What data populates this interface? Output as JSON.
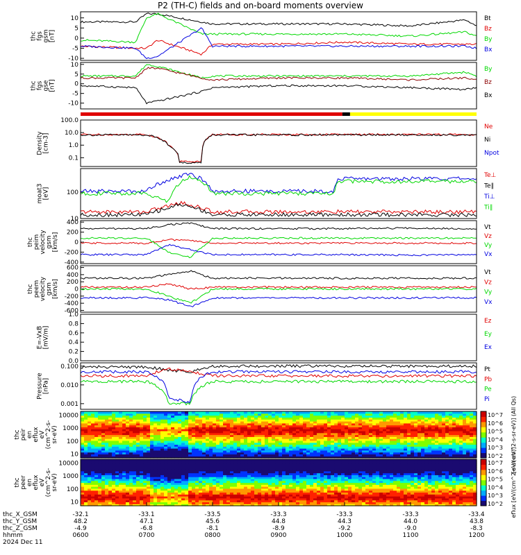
{
  "title": "P2 (TH-C) fields and on-board moments overview",
  "colors": {
    "black": "#000000",
    "red": "#e00000",
    "darkred": "#8b0000",
    "green": "#00d800",
    "blue": "#0000e0",
    "yellow": "#ffff00",
    "frame": "#000000"
  },
  "chart_data": [
    {
      "type": "line",
      "id": "fgs_gsm",
      "ylabel": [
        "thc",
        "fgs",
        "gsm",
        "[nT]"
      ],
      "yticks": [
        "10",
        "5",
        "0",
        "-5",
        "-10"
      ],
      "ylim": [
        -11,
        13
      ],
      "series": [
        {
          "name": "Bt",
          "color": "#000000",
          "x": [
            "0600",
            "0650",
            "0700",
            "0710",
            "0750",
            "0800",
            "0900",
            "1000",
            "1100",
            "1150",
            "1200"
          ],
          "values": [
            8,
            8,
            12,
            12,
            8,
            7,
            7,
            7,
            6,
            9,
            6
          ]
        },
        {
          "name": "Bz",
          "color": "#e00000",
          "x": [
            "0600",
            "0650",
            "0700",
            "0710",
            "0750",
            "0800",
            "0900",
            "1000",
            "1100",
            "1150",
            "1200"
          ],
          "values": [
            -4,
            -5,
            -5,
            -1,
            -8,
            -3,
            -3,
            -2,
            -3,
            -3,
            -3
          ]
        },
        {
          "name": "By",
          "color": "#00d800",
          "x": [
            "0600",
            "0650",
            "0700",
            "0710",
            "0750",
            "0800",
            "0900",
            "1000",
            "1100",
            "1150",
            "1200"
          ],
          "values": [
            -1,
            -2,
            10,
            12,
            2,
            2,
            2,
            2,
            1,
            3,
            1
          ]
        },
        {
          "name": "Bx",
          "color": "#0000e0",
          "x": [
            "0600",
            "0650",
            "0700",
            "0710",
            "0750",
            "0800",
            "0900",
            "1000",
            "1100",
            "1150",
            "1200"
          ],
          "values": [
            -4,
            -5,
            -10,
            -9,
            5,
            -4,
            -4,
            -4,
            -4,
            -4,
            -5
          ]
        }
      ]
    },
    {
      "type": "line",
      "id": "fgs_gse",
      "ylabel": [
        "thc",
        "fgs",
        "gse",
        "[nT]"
      ],
      "yticks": [
        "10",
        "5",
        "0",
        "-5",
        "-10"
      ],
      "ylim": [
        -13,
        11
      ],
      "series": [
        {
          "name": "By",
          "color": "#00d800",
          "x": [
            "0600",
            "0650",
            "0700",
            "0710",
            "0750",
            "0800",
            "0900",
            "1000",
            "1100",
            "1150",
            "1200"
          ],
          "values": [
            4,
            4,
            10,
            9,
            3,
            4,
            4,
            4,
            4,
            6,
            4
          ]
        },
        {
          "name": "Bz",
          "color": "#8b0000",
          "x": [
            "0600",
            "0650",
            "0700",
            "0710",
            "0750",
            "0800",
            "0900",
            "1000",
            "1100",
            "1150",
            "1200"
          ],
          "values": [
            3,
            3,
            8,
            8,
            3,
            2,
            3,
            3,
            2,
            3,
            2
          ]
        },
        {
          "name": "Bx",
          "color": "#000000",
          "x": [
            "0600",
            "0650",
            "0700",
            "0710",
            "0750",
            "0800",
            "0900",
            "1000",
            "1100",
            "1150",
            "1200"
          ],
          "values": [
            -1,
            -2,
            -10,
            -9,
            -4,
            -2,
            -1,
            -1,
            -2,
            -3,
            -2
          ]
        }
      ]
    },
    {
      "type": "line",
      "id": "density",
      "ylabel": [
        "Density",
        "[cm-3]"
      ],
      "yticks": [
        "100.0",
        "10.0",
        "1.0",
        "0.1"
      ],
      "ylim": [
        0.02,
        100
      ],
      "log": true,
      "series": [
        {
          "name": "Ne",
          "color": "#e00000",
          "x": [
            "0600",
            "0700",
            "0720",
            "0730",
            "0750",
            "0800",
            "0900",
            "1000",
            "1100",
            "1200"
          ],
          "values": [
            7,
            7,
            1,
            0.05,
            0.05,
            7,
            7,
            7,
            7,
            7
          ]
        },
        {
          "name": "Ni",
          "color": "#000000",
          "x": [
            "0600",
            "0700",
            "0720",
            "0730",
            "0750",
            "0800",
            "0900",
            "1000",
            "1100",
            "1200"
          ],
          "values": [
            6.5,
            6.5,
            1,
            0.04,
            0.04,
            6.5,
            6.5,
            6.5,
            6.5,
            6.5
          ]
        },
        {
          "name": "Npot",
          "color": "#0000e0",
          "x": [],
          "values": []
        }
      ]
    },
    {
      "type": "line",
      "id": "temperature",
      "ylabel": [
        "moat3",
        "[eV]"
      ],
      "yticks": [
        "100",
        "10"
      ],
      "ylim": [
        10,
        800
      ],
      "log": true,
      "series": [
        {
          "name": "Te⊥",
          "color": "#e00000",
          "x": [
            "0600",
            "0700",
            "0720",
            "0730",
            "0800",
            "0900",
            "1000",
            "1100",
            "1200"
          ],
          "values": [
            18,
            18,
            30,
            40,
            18,
            18,
            18,
            18,
            18
          ]
        },
        {
          "name": "Te∥",
          "color": "#000000",
          "x": [
            "0600",
            "0700",
            "0720",
            "0730",
            "0800",
            "0900",
            "1000",
            "1100",
            "1200"
          ],
          "values": [
            14,
            14,
            25,
            35,
            14,
            14,
            14,
            14,
            14
          ]
        },
        {
          "name": "Ti⊥",
          "color": "#0000e0",
          "x": [
            "0600",
            "0700",
            "0720",
            "0740",
            "0800",
            "0900",
            "0950",
            "0955",
            "1100",
            "1200"
          ],
          "values": [
            110,
            110,
            300,
            500,
            110,
            110,
            110,
            330,
            330,
            330
          ]
        },
        {
          "name": "Ti∥",
          "color": "#00d800",
          "x": [
            "0600",
            "0700",
            "0720",
            "0740",
            "0800",
            "0900",
            "0950",
            "0955",
            "1100",
            "1200"
          ],
          "values": [
            90,
            90,
            40,
            400,
            90,
            90,
            90,
            260,
            260,
            260
          ]
        }
      ]
    },
    {
      "type": "line",
      "id": "peim_velocity",
      "ylabel": [
        "thc",
        "peim",
        "velocity",
        "gsm",
        "[km/s]"
      ],
      "yticks": [
        "400",
        "200",
        "0",
        "-200",
        "-400"
      ],
      "ylim": [
        -430,
        430
      ],
      "series": [
        {
          "name": "Vt",
          "color": "#000000",
          "x": [
            "0600",
            "0700",
            "0720",
            "0740",
            "0800",
            "0900",
            "1000",
            "1100",
            "1200"
          ],
          "values": [
            270,
            270,
            350,
            380,
            270,
            270,
            270,
            280,
            270
          ]
        },
        {
          "name": "Vz",
          "color": "#e00000",
          "x": [
            "0600",
            "0700",
            "0720",
            "0740",
            "0800",
            "0900",
            "1000",
            "1100",
            "1200"
          ],
          "values": [
            -20,
            -20,
            50,
            30,
            -20,
            -20,
            -20,
            -20,
            -20
          ]
        },
        {
          "name": "Vy",
          "color": "#00d800",
          "x": [
            "0600",
            "0700",
            "0720",
            "0740",
            "0800",
            "0900",
            "1000",
            "1100",
            "1200"
          ],
          "values": [
            80,
            80,
            -200,
            -300,
            80,
            80,
            80,
            80,
            80
          ]
        },
        {
          "name": "Vx",
          "color": "#0000e0",
          "x": [
            "0600",
            "0700",
            "0720",
            "0740",
            "0800",
            "0900",
            "1000",
            "1100",
            "1200"
          ],
          "values": [
            -250,
            -250,
            -50,
            -150,
            -250,
            -250,
            -250,
            -260,
            -250
          ]
        }
      ]
    },
    {
      "type": "line",
      "id": "peem_velocity",
      "ylabel": [
        "thc",
        "peem",
        "velocity",
        "gsm",
        "[km/s]"
      ],
      "yticks": [
        "600",
        "400",
        "200",
        "0",
        "-200",
        "-400",
        "-600"
      ],
      "ylim": [
        -650,
        650
      ],
      "series": [
        {
          "name": "Vt",
          "color": "#000000",
          "x": [
            "0600",
            "0700",
            "0720",
            "0740",
            "0800",
            "0900",
            "1000",
            "1100",
            "1200"
          ],
          "values": [
            300,
            300,
            400,
            500,
            300,
            300,
            300,
            300,
            300
          ]
        },
        {
          "name": "Vz",
          "color": "#e00000",
          "x": [
            "0600",
            "0700",
            "0720",
            "0740",
            "0800",
            "0900",
            "1000",
            "1100",
            "1200"
          ],
          "values": [
            50,
            50,
            150,
            0,
            50,
            50,
            50,
            50,
            50
          ]
        },
        {
          "name": "Vy",
          "color": "#00d800",
          "x": [
            "0600",
            "0700",
            "0720",
            "0740",
            "0800",
            "0900",
            "1000",
            "1100",
            "1200"
          ],
          "values": [
            0,
            0,
            -200,
            -400,
            0,
            0,
            0,
            0,
            0
          ]
        },
        {
          "name": "Vx",
          "color": "#0000e0",
          "x": [
            "0600",
            "0700",
            "0720",
            "0740",
            "0800",
            "0900",
            "1000",
            "1100",
            "1200"
          ],
          "values": [
            -250,
            -250,
            -300,
            -500,
            -250,
            -250,
            -250,
            -250,
            -250
          ]
        }
      ]
    },
    {
      "type": "line",
      "id": "e_field",
      "ylabel": [
        "E=-VxB",
        "[mV/m]"
      ],
      "yticks": [
        "1.0",
        "0.8",
        "0.6",
        "0.4",
        "0.2",
        "0.0"
      ],
      "ylim": [
        0,
        1
      ],
      "series": [
        {
          "name": "Ez",
          "color": "#e00000",
          "x": [],
          "values": []
        },
        {
          "name": "Ey",
          "color": "#00d800",
          "x": [],
          "values": []
        },
        {
          "name": "Ex",
          "color": "#0000e0",
          "x": [],
          "values": []
        }
      ]
    },
    {
      "type": "line",
      "id": "pressure",
      "ylabel": [
        "Pressure",
        "[nPa]"
      ],
      "yticks": [
        "0.100",
        "0.010",
        "0.001"
      ],
      "ylim": [
        0.0005,
        0.15
      ],
      "log": true,
      "series": [
        {
          "name": "Pt",
          "color": "#000000",
          "x": [
            "0600",
            "0700",
            "0720",
            "0740",
            "0800",
            "0900",
            "1000",
            "1100",
            "1200"
          ],
          "values": [
            0.09,
            0.09,
            0.06,
            0.05,
            0.1,
            0.1,
            0.1,
            0.1,
            0.1
          ]
        },
        {
          "name": "Pb",
          "color": "#e00000",
          "x": [
            "0600",
            "0700",
            "0720",
            "0740",
            "0800",
            "0900",
            "1000",
            "1100",
            "1200"
          ],
          "values": [
            0.03,
            0.03,
            0.07,
            0.05,
            0.03,
            0.03,
            0.03,
            0.03,
            0.03
          ]
        },
        {
          "name": "Pe",
          "color": "#00d800",
          "x": [
            "0600",
            "0700",
            "0720",
            "0740",
            "0800",
            "0900",
            "1000",
            "1100",
            "1200"
          ],
          "values": [
            0.015,
            0.015,
            0.001,
            0.001,
            0.015,
            0.015,
            0.015,
            0.015,
            0.015
          ]
        },
        {
          "name": "Pi",
          "color": "#0000e0",
          "x": [
            "0600",
            "0700",
            "0720",
            "0740",
            "0800",
            "0900",
            "1000",
            "1100",
            "1200"
          ],
          "values": [
            0.05,
            0.05,
            0.002,
            0.001,
            0.05,
            0.05,
            0.05,
            0.05,
            0.05
          ]
        }
      ]
    },
    {
      "type": "heatmap",
      "id": "peir_spectrogram",
      "ylabel": [
        "thc",
        "peir",
        "en",
        "eflux",
        "eV",
        "(cm^2-s-",
        "sr-eV)"
      ],
      "yticks": [
        "10000",
        "1000",
        "100",
        "10"
      ],
      "ylim": [
        5,
        20000
      ],
      "log": true,
      "band_energy_eV": 600,
      "colorbar_label": "[eV/(cm^2-s-sr-eV)] (All Qs)",
      "colorbar_ticks": [
        "10^7",
        "10^6",
        "10^5",
        "10^4",
        "10^3",
        "10^2"
      ]
    },
    {
      "type": "heatmap",
      "id": "peer_spectrogram",
      "ylabel": [
        "thc",
        "peer",
        "en",
        "eflux",
        "eV",
        "(cm^2-s-",
        "sr-eV)"
      ],
      "yticks": [
        "10000",
        "1000",
        "100",
        "10"
      ],
      "ylim": [
        5,
        20000
      ],
      "log": true,
      "band_energy_eV": 20,
      "colorbar_label": "eflux [eV/(cm^2-s-sr-eV)]",
      "colorbar_ticks": [
        "10^7",
        "10^6",
        "10^5",
        "10^4",
        "10^3",
        "10^2"
      ]
    }
  ],
  "mode_bar": [
    {
      "from": "0600",
      "to": "0958",
      "color": "#e00000"
    },
    {
      "from": "0958",
      "to": "1005",
      "color": "#000000"
    },
    {
      "from": "1005",
      "to": "1200",
      "color": "#ffff00"
    }
  ],
  "x_axis": {
    "rows": [
      {
        "label": "thc_X_GSM",
        "values": [
          "-32.1",
          "-33.1",
          "-33.5",
          "-33.3",
          "-33.3",
          "-33.3",
          "-33.4"
        ]
      },
      {
        "label": "thc_Y_GSM",
        "values": [
          "48.2",
          "47.1",
          "45.6",
          "44.8",
          "44.3",
          "44.0",
          "43.8"
        ]
      },
      {
        "label": "thc_Z_GSM",
        "values": [
          "-4.9",
          "-6.8",
          "-8.1",
          "-8.9",
          "-9.2",
          "-9.0",
          "-8.3"
        ]
      },
      {
        "label": "hhmm",
        "values": [
          "0600",
          "0700",
          "0800",
          "0900",
          "1000",
          "1100",
          "1200"
        ]
      }
    ],
    "date": "2024 Dec 11"
  }
}
